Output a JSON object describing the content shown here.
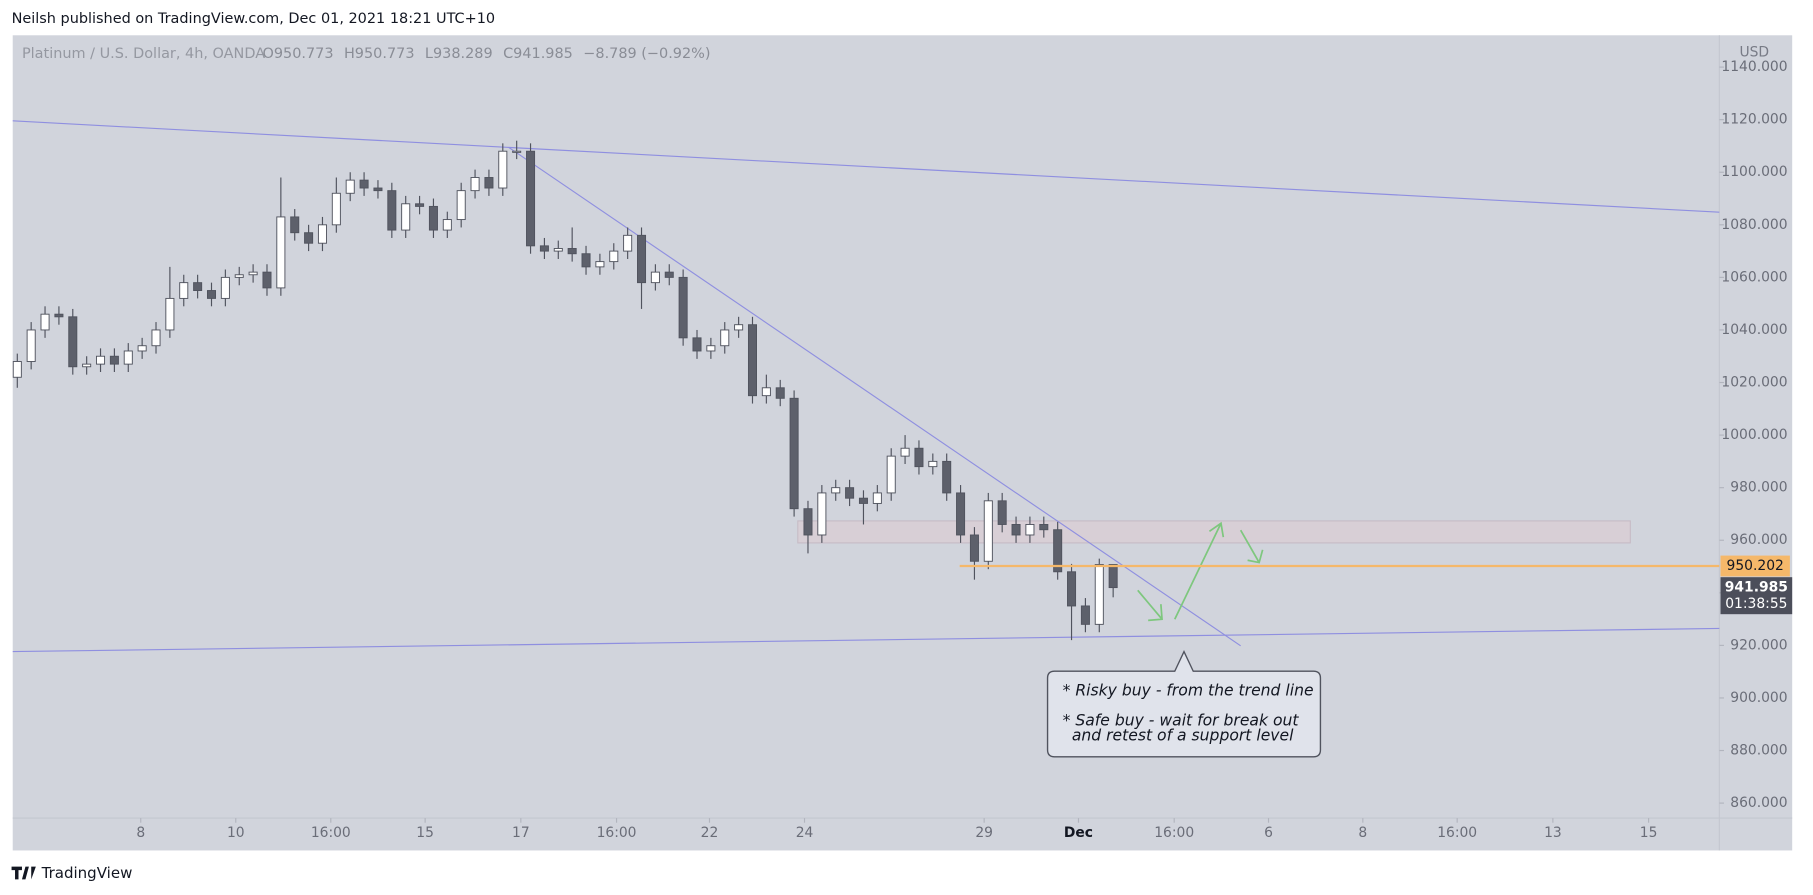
{
  "header": {
    "text": "Neilsh published on TradingView.com, Dec 01, 2021 18:21 UTC+10"
  },
  "footer": {
    "brand": "TradingView"
  },
  "chart_data": {
    "type": "candlestick",
    "title": "Platinum / U.S. Dollar, 4h, OANDA",
    "legend_values": [
      "O950.773",
      "H950.773",
      "L938.289",
      "C941.985",
      "−8.789 (−0.92%)"
    ],
    "y_axis_label": "USD",
    "up_color": "#ffffff",
    "down_color": "#5d606b",
    "border_color": "#50535e",
    "open": [
      1022,
      1028,
      1040,
      1046,
      1045,
      1026,
      1027,
      1030,
      1027,
      1032,
      1034,
      1040,
      1052,
      1058,
      1055,
      1052,
      1060,
      1061,
      1062,
      1056,
      1083,
      1077,
      1073,
      1080,
      1092,
      1097,
      1094,
      1093,
      1078,
      1088,
      1087,
      1078,
      1082,
      1093,
      1098,
      1094,
      1108,
      1108,
      1072,
      1070,
      1071,
      1069,
      1064,
      1066,
      1070,
      1076,
      1058,
      1062,
      1060,
      1037,
      1032,
      1034,
      1040,
      1042,
      1015,
      1018,
      1014,
      972,
      962,
      978,
      980,
      976,
      974,
      978,
      992,
      995,
      988,
      990,
      978,
      962,
      952,
      975,
      966,
      962,
      966,
      964,
      948,
      935,
      928,
      950.773
    ],
    "high": [
      1031,
      1043,
      1049,
      1049,
      1048,
      1030,
      1033,
      1033,
      1035,
      1037,
      1043,
      1064,
      1061,
      1061,
      1058,
      1063,
      1064,
      1065,
      1065,
      1098,
      1086,
      1080,
      1083,
      1098,
      1100,
      1100,
      1097,
      1096,
      1091,
      1091,
      1090,
      1085,
      1096,
      1101,
      1101,
      1111,
      1112,
      1111,
      1075,
      1074,
      1079,
      1072,
      1069,
      1073,
      1079,
      1079,
      1065,
      1065,
      1063,
      1040,
      1037,
      1043,
      1045,
      1045,
      1023,
      1021,
      1017,
      975,
      981,
      983,
      983,
      979,
      981,
      995,
      1000,
      998,
      993,
      993,
      981,
      965,
      978,
      978,
      969,
      969,
      969,
      967,
      951,
      938,
      953,
      950.773
    ],
    "low": [
      1018,
      1025,
      1037,
      1042,
      1023,
      1023,
      1024,
      1024,
      1024,
      1029,
      1031,
      1037,
      1049,
      1052,
      1049,
      1049,
      1057,
      1058,
      1053,
      1053,
      1074,
      1070,
      1070,
      1077,
      1089,
      1091,
      1090,
      1075,
      1075,
      1084,
      1075,
      1075,
      1079,
      1090,
      1091,
      1091,
      1105,
      1069,
      1067,
      1067,
      1066,
      1061,
      1061,
      1063,
      1067,
      1048,
      1055,
      1057,
      1034,
      1029,
      1029,
      1031,
      1037,
      1012,
      1012,
      1011,
      969,
      955,
      959,
      975,
      973,
      966,
      971,
      975,
      989,
      985,
      985,
      975,
      959,
      945,
      949,
      963,
      959,
      959,
      961,
      945,
      922,
      925,
      925,
      938.289
    ],
    "close": [
      1028,
      1040,
      1046,
      1045,
      1026,
      1027,
      1030,
      1027,
      1032,
      1034,
      1040,
      1052,
      1058,
      1055,
      1052,
      1060,
      1061,
      1062,
      1056,
      1083,
      1077,
      1073,
      1080,
      1092,
      1097,
      1094,
      1093,
      1078,
      1088,
      1087,
      1078,
      1082,
      1093,
      1098,
      1094,
      1108,
      1108,
      1072,
      1070,
      1071,
      1069,
      1064,
      1066,
      1070,
      1076,
      1058,
      1062,
      1060,
      1037,
      1032,
      1034,
      1040,
      1042,
      1015,
      1018,
      1014,
      972,
      962,
      978,
      980,
      976,
      974,
      978,
      992,
      995,
      988,
      990,
      978,
      962,
      952,
      975,
      966,
      962,
      966,
      964,
      948,
      935,
      928,
      950.773,
      941.985
    ],
    "xlim": [
      -0.33,
      122.7
    ],
    "xticks": [
      {
        "value": 8.9,
        "label": "8"
      },
      {
        "value": 15.75,
        "label": "10"
      },
      {
        "value": 22.6,
        "label": "16:00"
      },
      {
        "value": 29.4,
        "label": "15"
      },
      {
        "value": 36.3,
        "label": "17"
      },
      {
        "value": 43.2,
        "label": "16:00"
      },
      {
        "value": 49.9,
        "label": "22"
      },
      {
        "value": 56.75,
        "label": "24"
      },
      {
        "value": 69.7,
        "label": "29"
      },
      {
        "value": 76.5,
        "label": "Dec"
      },
      {
        "value": 83.4,
        "label": "16:00"
      },
      {
        "value": 90.2,
        "label": "6"
      },
      {
        "value": 97,
        "label": "8"
      },
      {
        "value": 103.8,
        "label": "16:00"
      },
      {
        "value": 110.7,
        "label": "13"
      },
      {
        "value": 117.6,
        "label": "15"
      }
    ],
    "ylim": [
      854.3,
      1152.1
    ],
    "yticks": [
      {
        "value": 860,
        "label": "860.000"
      },
      {
        "value": 880,
        "label": "880.000"
      },
      {
        "value": 900,
        "label": "900.000"
      },
      {
        "value": 920,
        "label": "920.000"
      },
      {
        "value": 940,
        "label": "940.000"
      },
      {
        "value": 960,
        "label": "960.000"
      },
      {
        "value": 980,
        "label": "980.000"
      },
      {
        "value": 1000,
        "label": "1000.000"
      },
      {
        "value": 1020,
        "label": "1020.000"
      },
      {
        "value": 1040,
        "label": "1040.000"
      },
      {
        "value": 1060,
        "label": "1060.000"
      },
      {
        "value": 1080,
        "label": "1080.000"
      },
      {
        "value": 1100,
        "label": "1100.000"
      },
      {
        "value": 1120,
        "label": "1120.000"
      },
      {
        "value": 1140,
        "label": "1140.000"
      }
    ],
    "grid": false,
    "alert_line": {
      "value": 950.202,
      "color": "#f5b86a"
    },
    "last_price": {
      "value": 941.985,
      "countdown": "01:38:55"
    },
    "annotation": [
      "* Risky buy - from the trend line",
      "* Safe buy  - wait for break out",
      "and retest of a support level"
    ]
  }
}
